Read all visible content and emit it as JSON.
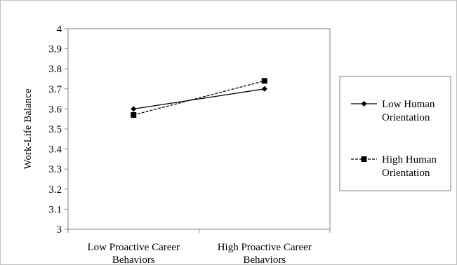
{
  "chart_data": {
    "type": "line",
    "title": "",
    "xlabel": "",
    "ylabel": "Work-Life Balance",
    "categories": [
      [
        "Low Proactive Career",
        "Behaviors"
      ],
      [
        "High Proactive Career",
        "Behaviors"
      ]
    ],
    "ylim": [
      3,
      4
    ],
    "yticks": [
      "3",
      "3.1",
      "3.2",
      "3.3",
      "3.4",
      "3.5",
      "3.6",
      "3.7",
      "3.8",
      "3.9",
      "4"
    ],
    "grid": false,
    "legend_position": "right",
    "series": [
      {
        "name": [
          "Low Human",
          "Orientation"
        ],
        "values": [
          3.6,
          3.7
        ],
        "marker": "diamond",
        "line_style": "solid",
        "color": "#000000"
      },
      {
        "name": [
          "High Human",
          "Orientation"
        ],
        "values": [
          3.57,
          3.74
        ],
        "marker": "square",
        "line_style": "dashed",
        "color": "#000000"
      }
    ]
  }
}
